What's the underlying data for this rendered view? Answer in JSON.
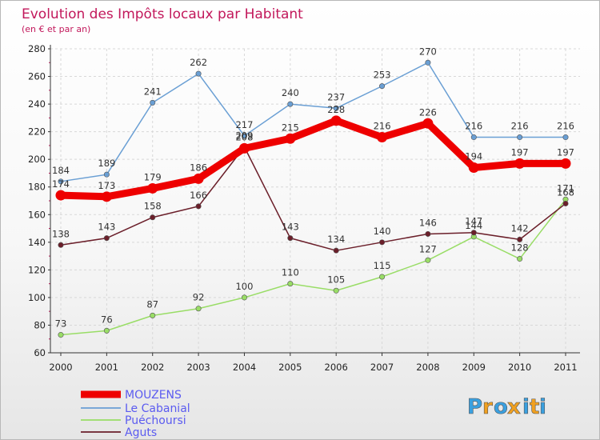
{
  "chart_data": {
    "type": "line",
    "title": "Evolution des Impôts locaux par Habitant",
    "subtitle": "(en € et par an)",
    "x": [
      "2000",
      "2001",
      "2002",
      "2003",
      "2004",
      "2005",
      "2006",
      "2007",
      "2008",
      "2009",
      "2010",
      "2011"
    ],
    "ylim": [
      60,
      280
    ],
    "yticks": [
      "60",
      "80",
      "100",
      "120",
      "140",
      "160",
      "180",
      "200",
      "220",
      "240",
      "260",
      "280"
    ],
    "grid": true,
    "legend_position": "bottom-left",
    "series": [
      {
        "name": "MOUZENS",
        "color": "#ee0000",
        "values": [
          174,
          173,
          179,
          186,
          208,
          215,
          228,
          216,
          226,
          194,
          197,
          197
        ]
      },
      {
        "name": "Le Cabanial",
        "color": "#6a9fd4",
        "values": [
          184,
          189,
          241,
          262,
          217,
          240,
          237,
          253,
          270,
          216,
          216,
          216
        ]
      },
      {
        "name": "Puéchoursi",
        "color": "#99dd66",
        "values": [
          73,
          76,
          87,
          92,
          100,
          110,
          105,
          115,
          127,
          144,
          128,
          171
        ]
      },
      {
        "name": "Aguts",
        "color": "#6b1f2a",
        "values": [
          138,
          143,
          158,
          166,
          209,
          143,
          134,
          140,
          146,
          147,
          142,
          168
        ]
      }
    ]
  },
  "branding": {
    "letters": [
      "P",
      "r",
      "o",
      "x",
      "i",
      "t",
      "i"
    ],
    "colors": [
      "#3aa0e0",
      "#f0a020",
      "#3aa0e0",
      "#f0a020",
      "#3aa0e0",
      "#f0a020",
      "#3aa0e0"
    ]
  }
}
